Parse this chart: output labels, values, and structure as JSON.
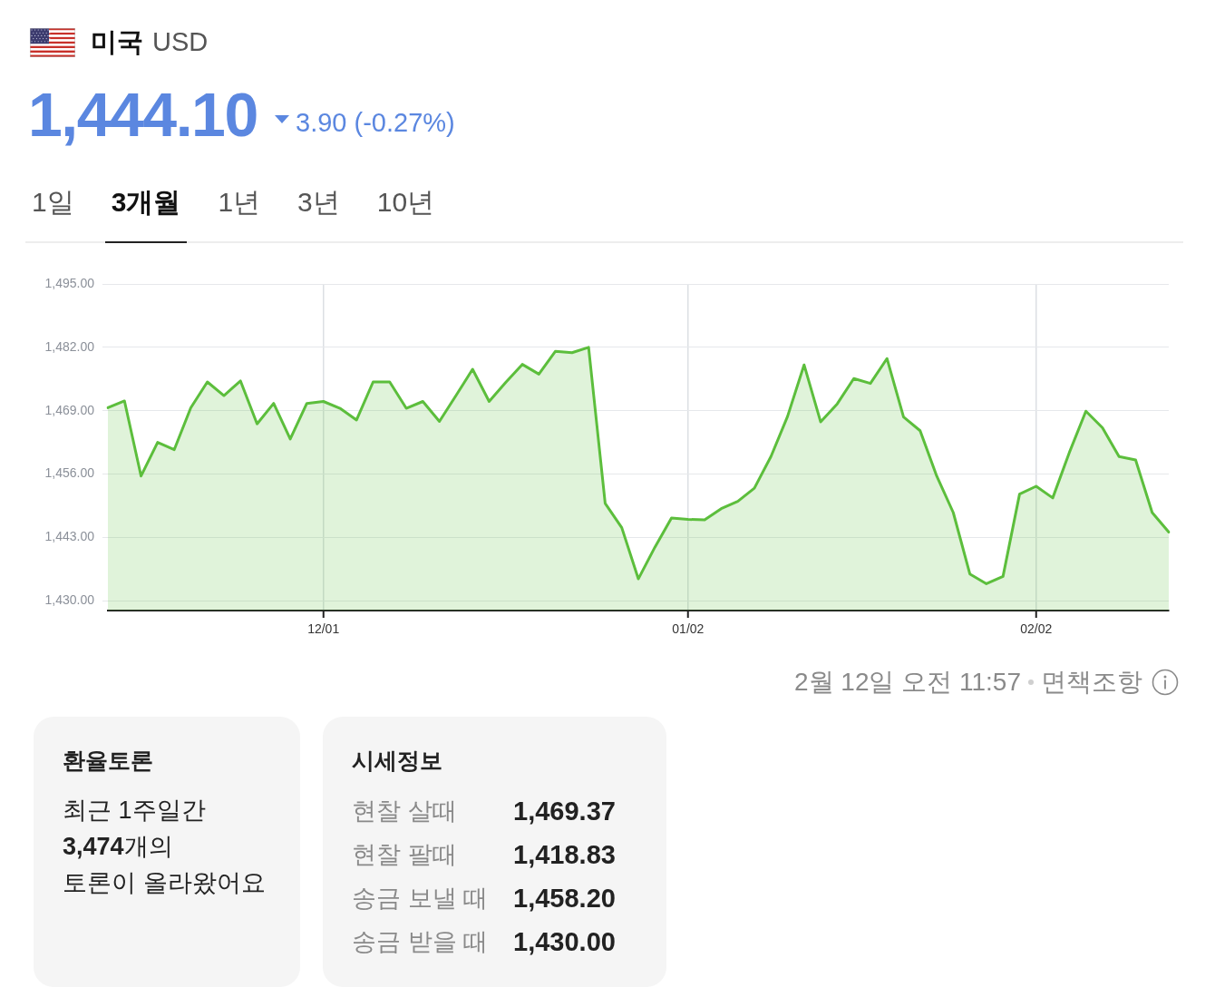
{
  "chart_data": [
    {
      "type": "area",
      "title": "미국",
      "subtitle": "USD",
      "annotations": [
        "1,444.10",
        "3.90 (-0.27%)",
        "1일",
        "3개월",
        "1년",
        "3년",
        "10년",
        "2월 12일 오전 11:57",
        "면책조항"
      ],
      "categories": [
        null,
        null,
        null,
        null,
        null,
        null,
        null,
        null,
        null,
        null,
        null,
        null,
        null,
        "12/01",
        null,
        null,
        null,
        null,
        null,
        null,
        null,
        null,
        null,
        null,
        null,
        null,
        null,
        null,
        null,
        null,
        null,
        null,
        null,
        null,
        null,
        "01/02",
        null,
        null,
        null,
        null,
        null,
        null,
        null,
        null,
        null,
        null,
        null,
        null,
        null,
        null,
        null,
        null,
        null,
        null,
        null,
        null,
        "02/02",
        null,
        null,
        null,
        null,
        null,
        null,
        null,
        null
      ],
      "values": [
        1469.6,
        1471.0,
        1455.6,
        1462.5,
        1461.0,
        1469.6,
        1474.9,
        1472.1,
        1475.1,
        1466.3,
        1470.5,
        1463.2,
        1470.5,
        1470.9,
        1469.5,
        1467.1,
        1474.9,
        1474.9,
        1469.5,
        1470.9,
        1466.8,
        1472.1,
        1477.5,
        1470.9,
        1474.8,
        1478.5,
        1476.5,
        1481.2,
        1480.9,
        1482.0,
        1450.0,
        1445.0,
        1434.5,
        1441.0,
        1447.0,
        1446.7,
        1446.6,
        1448.9,
        1450.4,
        1453.1,
        1459.6,
        1467.8,
        1478.4,
        1466.7,
        1470.4,
        1475.6,
        1474.6,
        1479.7,
        1467.7,
        1464.9,
        1455.6,
        1448.1,
        1435.5,
        1433.5,
        1435.0,
        1451.9,
        1453.5,
        1451.1,
        1460.4,
        1468.9,
        1465.5,
        1459.6,
        1458.9,
        1448.1,
        1444.1
      ],
      "color": "#5cbe3c",
      "ylim": [
        1428,
        1495
      ],
      "yticks": [
        {
          "value": 1430,
          "label": "1,430.00"
        },
        {
          "value": 1443,
          "label": "1,443.00"
        },
        {
          "value": 1456,
          "label": "1,456.00"
        },
        {
          "value": 1469,
          "label": "1,469.00"
        },
        {
          "value": 1482,
          "label": "1,482.00"
        },
        {
          "value": 1495,
          "label": "1,495.00"
        }
      ],
      "grid": true
    },
    {
      "type": "other",
      "title": "환율토론",
      "annotations": [
        "최근 1주일간",
        "3,474",
        "개의",
        "토론이 올라왔어요"
      ]
    },
    {
      "type": "other",
      "title": "시세정보",
      "annotations": [
        "현찰 살때",
        "1,469.37",
        "현찰 팔때",
        "1,418.83",
        "송금 보낼 때",
        "1,458.20",
        "송금 받을 때",
        "1,430.00"
      ]
    }
  ]
}
